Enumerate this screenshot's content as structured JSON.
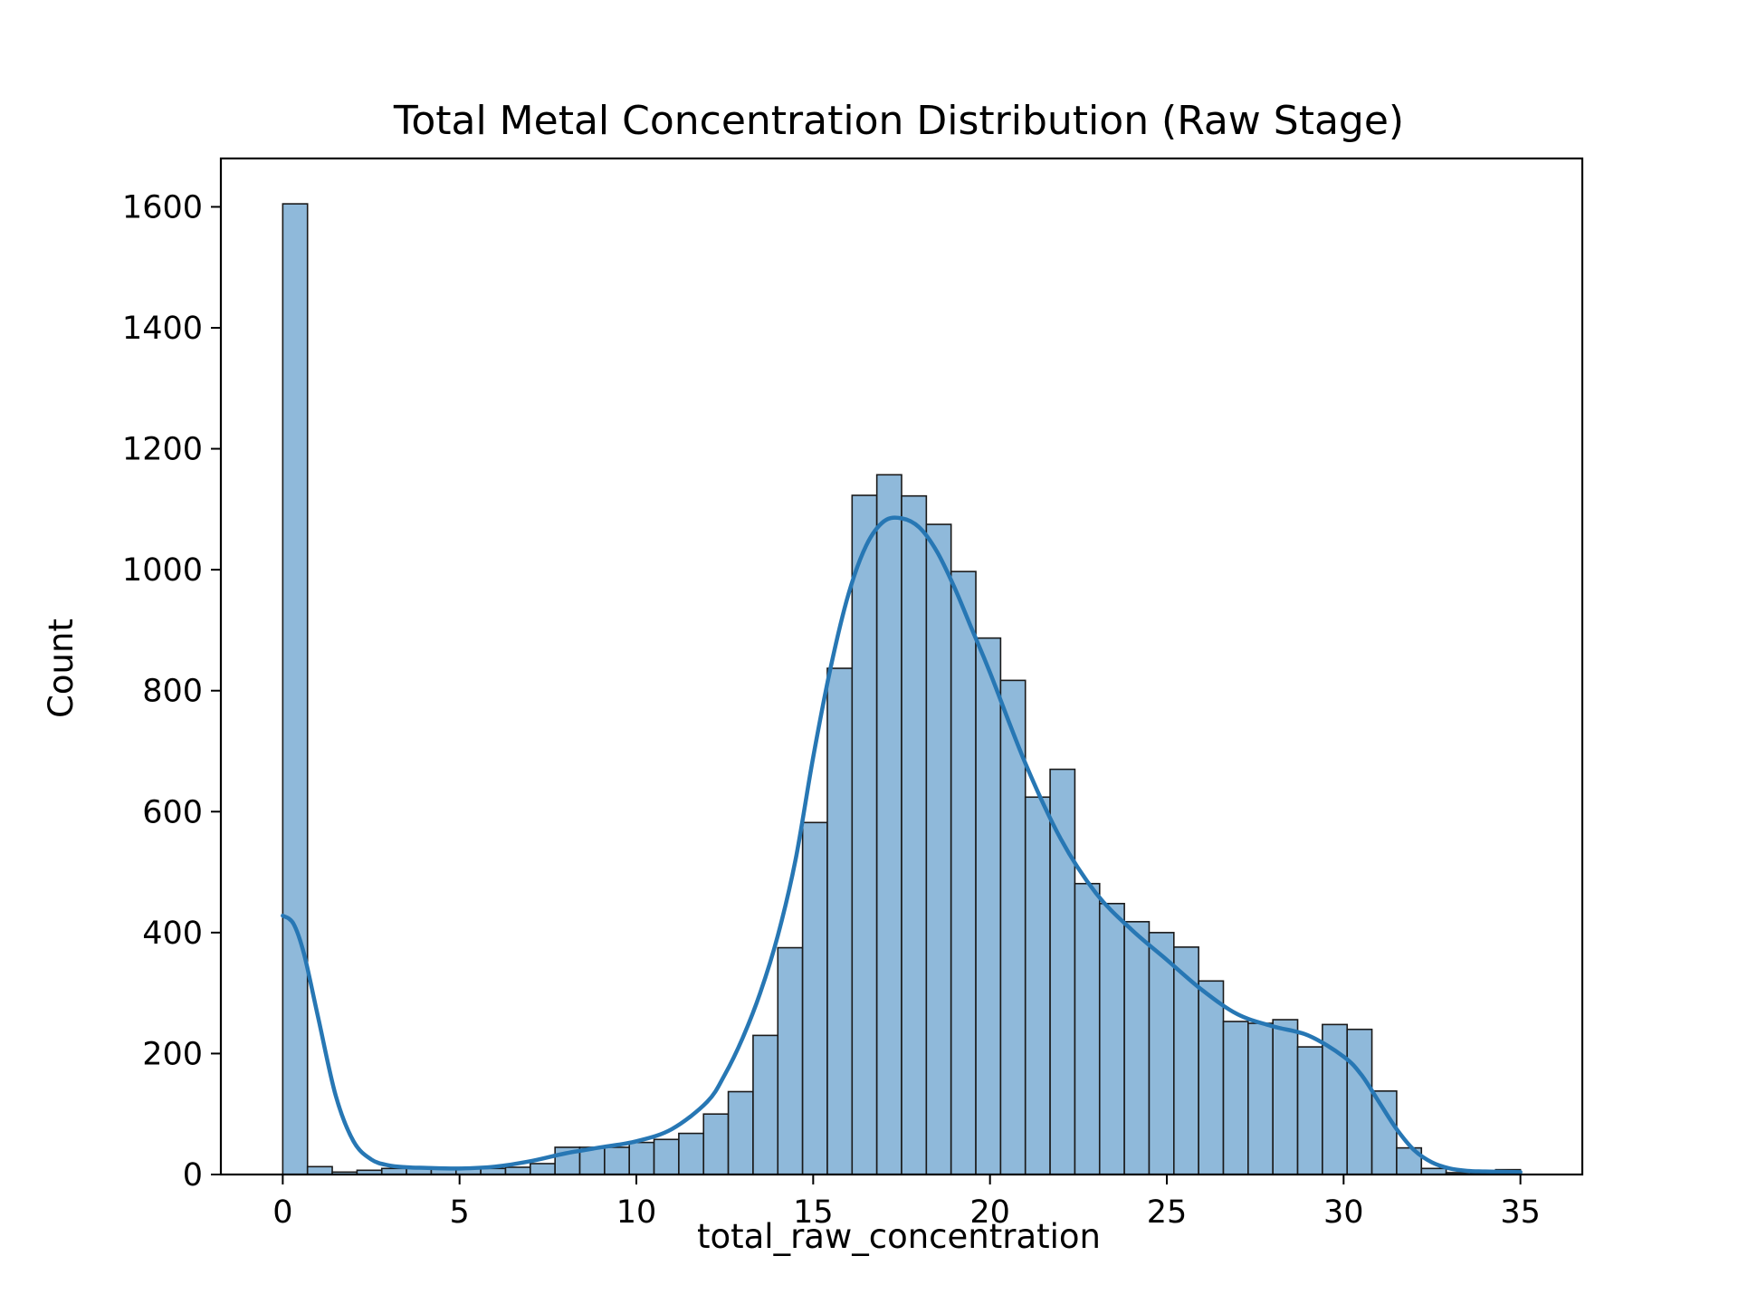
{
  "chart_data": {
    "type": "bar",
    "title": "Total Metal Concentration Distribution (Raw Stage)",
    "xlabel": "total_raw_concentration",
    "ylabel": "Count",
    "xlim": [
      -1.75,
      36.75
    ],
    "ylim": [
      0,
      1680
    ],
    "xticks": [
      0,
      5,
      10,
      15,
      20,
      25,
      30,
      35
    ],
    "yticks": [
      0,
      200,
      400,
      600,
      800,
      1000,
      1200,
      1400,
      1600
    ],
    "grid": false,
    "legend": "none",
    "colors": {
      "bar_fill": "#8fb9da",
      "bar_edge": "#1a1a1a",
      "kde_line": "#2777b4"
    },
    "bin_start": 0,
    "bin_width": 0.7,
    "counts": [
      1605,
      13,
      4,
      7,
      10,
      10,
      10,
      10,
      10,
      12,
      18,
      45,
      45,
      45,
      53,
      58,
      68,
      100,
      137,
      230,
      375,
      582,
      837,
      1123,
      1157,
      1122,
      1075,
      997,
      887,
      817,
      624,
      670,
      481,
      448,
      418,
      400,
      376,
      320,
      253,
      250,
      256,
      211,
      248,
      240,
      138,
      44,
      10,
      3,
      1,
      8
    ],
    "kde": {
      "x": [
        0,
        0.3,
        0.6,
        1.0,
        1.5,
        2.0,
        2.5,
        3.0,
        3.5,
        4.0,
        5.0,
        6.0,
        7.0,
        8.0,
        9.0,
        10.0,
        11.0,
        12.0,
        12.5,
        13.0,
        13.5,
        14.0,
        14.5,
        15.0,
        15.5,
        16.0,
        16.5,
        17.0,
        17.5,
        18.0,
        18.5,
        19.0,
        19.5,
        20.0,
        21.0,
        22.0,
        23.0,
        24.0,
        25.0,
        26.0,
        27.0,
        28.0,
        29.0,
        30.0,
        30.5,
        31.0,
        31.5,
        32.0,
        32.5,
        33.0,
        33.5,
        34.0,
        35.0
      ],
      "y": [
        428,
        415,
        365,
        260,
        130,
        55,
        25,
        15,
        12,
        11,
        10,
        13,
        22,
        35,
        45,
        55,
        75,
        120,
        165,
        225,
        300,
        395,
        520,
        690,
        840,
        960,
        1040,
        1080,
        1085,
        1070,
        1030,
        970,
        900,
        830,
        680,
        555,
        465,
        405,
        355,
        305,
        265,
        245,
        230,
        195,
        165,
        120,
        75,
        40,
        20,
        10,
        6,
        5,
        4
      ]
    }
  }
}
